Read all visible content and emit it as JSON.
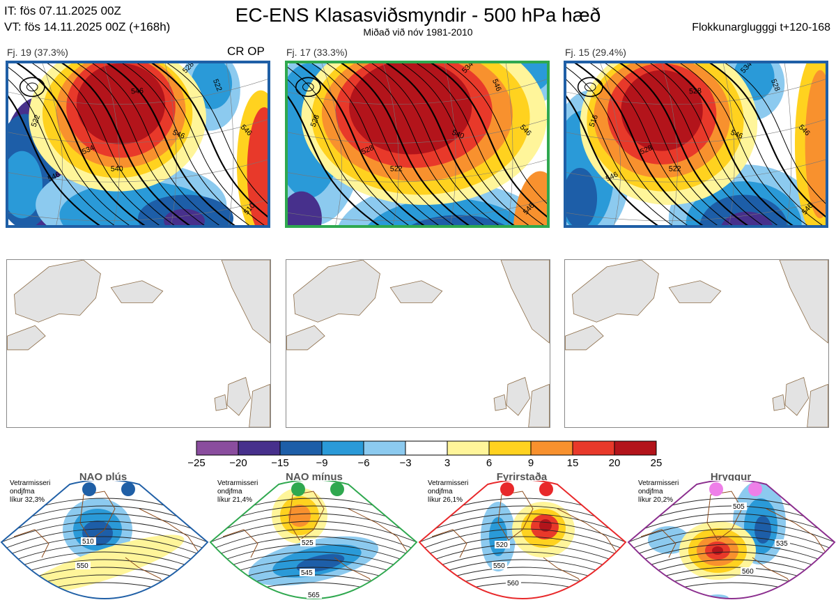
{
  "header": {
    "it_line": "IT: fös 07.11.2025 00Z",
    "vt_line": "VT: fös 14.11.2025 00Z  (+168h)",
    "title": "EC-ENS Klasasviðsmyndir - 500 hPa hæð",
    "subtitle": "Miðað við nóv 1981-2010",
    "window": "Flokkunarglugggi t+120-168"
  },
  "clusters": [
    {
      "label": "Fj. 19 (37.3%)",
      "extra": "CR OP",
      "frame_color": "#1f5fa6",
      "contour_labels": [
        "522",
        "528",
        "534",
        "540",
        "546",
        "546",
        "522",
        "510",
        "546",
        "546"
      ]
    },
    {
      "label": "Fj. 17 (33.3%)",
      "extra": "",
      "frame_color": "#2fa84f",
      "contour_labels": [
        "528",
        "534",
        "528",
        "522",
        "540",
        "546",
        "546",
        "546"
      ]
    },
    {
      "label": "Fj. 15 (29.4%)",
      "extra": "",
      "frame_color": "#1f5fa6",
      "contour_labels": [
        "516",
        "534",
        "528",
        "522",
        "546",
        "546",
        "528",
        "546",
        "546",
        "528"
      ]
    }
  ],
  "colorbar": {
    "ticks": [
      "−25",
      "−20",
      "−15",
      "−9",
      "−6",
      "−3",
      "3",
      "6",
      "9",
      "15",
      "20",
      "25"
    ],
    "colors": [
      "#8a4d9e",
      "#47308c",
      "#1d5ea8",
      "#2a9ad8",
      "#8ccaef",
      "#ffffff",
      "#fff59a",
      "#ffd21f",
      "#f8912e",
      "#e8392a",
      "#b3141b"
    ]
  },
  "regimes": [
    {
      "title": "NAO plús",
      "note": [
        "Vetrarmisseri",
        "ondjfma",
        "líkur 32,3%"
      ],
      "color": "#1f5fa6",
      "dot_color": "#1f5fa6",
      "labels": [
        "510",
        "550"
      ]
    },
    {
      "title": "NAO mínus",
      "note": [
        "Vetrarmisseri",
        "ondjfma",
        "líkur 21,4%"
      ],
      "color": "#2fa84f",
      "dot_color": "#2fa84f",
      "labels": [
        "525",
        "545",
        "565"
      ]
    },
    {
      "title": "Fyrirstaða",
      "note": [
        "Vetrarmisseri",
        "ondjfma",
        "líkur 26,1%"
      ],
      "color": "#e8282a",
      "dot_color": "#e8282a",
      "labels": [
        "520",
        "550",
        "560"
      ]
    },
    {
      "title": "Hryggur",
      "note": [
        "Vetrarmisseri",
        "ondjfma",
        "líkur 20,2%"
      ],
      "color": "#8b2e8e",
      "dot_color": "#ee7fe8",
      "labels": [
        "505",
        "535",
        "560"
      ]
    }
  ]
}
